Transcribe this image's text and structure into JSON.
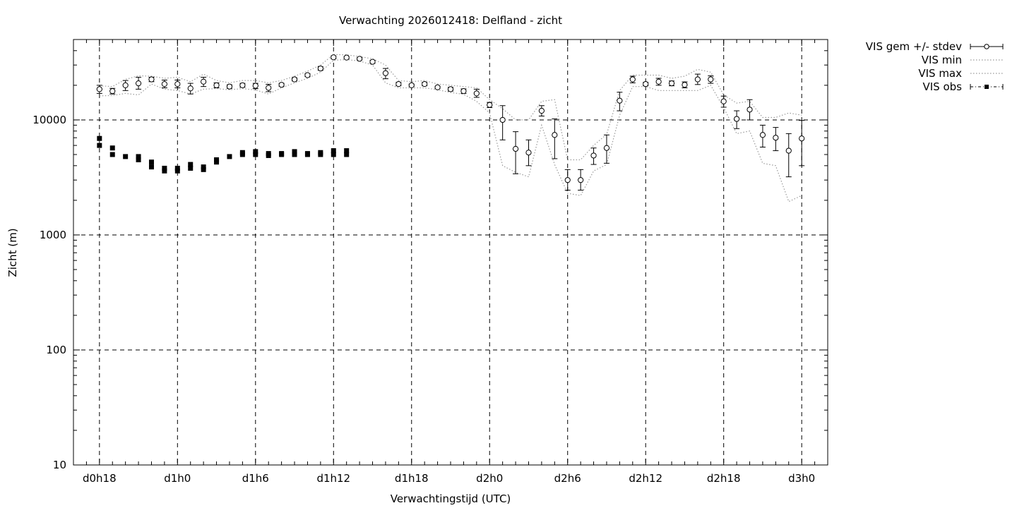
{
  "chart_data": {
    "type": "line",
    "title": "Verwachting 2026012418: Delfland - zicht",
    "xlabel": "Verwachtingstijd (UTC)",
    "ylabel": "Zicht (m)",
    "ylim": [
      10,
      50000
    ],
    "y_scale": "log",
    "y_ticks": [
      10,
      100,
      1000,
      10000
    ],
    "y_tick_labels": [
      "10",
      "100",
      "1000",
      "10000"
    ],
    "xlim_hours": [
      16,
      74
    ],
    "x_ticks_hours": [
      18,
      24,
      30,
      36,
      42,
      48,
      54,
      60,
      66,
      72
    ],
    "x_tick_labels": [
      "d0h18",
      "d1h0",
      "d1h6",
      "d1h12",
      "d1h18",
      "d2h0",
      "d2h6",
      "d2h12",
      "d2h18",
      "d3h0"
    ],
    "grid": "dashed",
    "legend_position": "top-right outside",
    "legend": [
      "VIS gem +/- stdev",
      "VIS min",
      "VIS max",
      "VIS obs"
    ],
    "series": [
      {
        "name": "VIS gem +/- stdev",
        "style": "errorbars-open-circle",
        "x": [
          18,
          19,
          20,
          21,
          22,
          23,
          24,
          25,
          26,
          27,
          28,
          29,
          30,
          31,
          32,
          33,
          34,
          35,
          36,
          37,
          38,
          39,
          40,
          41,
          42,
          43,
          44,
          45,
          46,
          47,
          48,
          49,
          50,
          51,
          52,
          53,
          54,
          55,
          56,
          57,
          58,
          59,
          60,
          61,
          62,
          63,
          64,
          65,
          66,
          67,
          68,
          69,
          70,
          71,
          72
        ],
        "mean": [
          18500,
          17800,
          20000,
          20800,
          22500,
          20500,
          20500,
          18800,
          21500,
          20000,
          19500,
          20000,
          19800,
          19000,
          20200,
          22500,
          24500,
          28000,
          35000,
          34800,
          34000,
          32000,
          25500,
          20500,
          20000,
          20500,
          19200,
          18500,
          17800,
          17000,
          13500,
          10000,
          5600,
          5200,
          12000,
          7400,
          3000,
          3000,
          4900,
          5700,
          14700,
          22500,
          20500,
          21500,
          20800,
          20200,
          22500,
          22500,
          14500,
          10200,
          12300,
          7400,
          7000,
          5400,
          6900
        ],
        "lo": [
          17000,
          16800,
          18000,
          18500,
          21500,
          19000,
          19000,
          16800,
          19500,
          19000,
          18800,
          19200,
          18700,
          17600,
          19600,
          21800,
          23800,
          27000,
          34000,
          34000,
          33200,
          31000,
          22800,
          19800,
          19500,
          19800,
          18800,
          17800,
          17000,
          15700,
          12800,
          6700,
          3400,
          4000,
          10800,
          4600,
          2450,
          2450,
          4100,
          4200,
          12000,
          21000,
          19800,
          20000,
          19800,
          19000,
          20300,
          20800,
          12900,
          8400,
          10000,
          5800,
          5400,
          3200,
          4000
        ],
        "hi": [
          20000,
          18800,
          22000,
          23500,
          23500,
          22200,
          22200,
          20800,
          23500,
          21000,
          20200,
          20800,
          20800,
          20400,
          20800,
          23200,
          25200,
          29000,
          36000,
          35600,
          34800,
          33000,
          28000,
          21200,
          20500,
          21200,
          19600,
          19200,
          18600,
          18500,
          14200,
          13300,
          7900,
          6700,
          13300,
          10200,
          3700,
          3700,
          5700,
          7400,
          17400,
          24000,
          21200,
          23000,
          21800,
          21400,
          25000,
          24200,
          16100,
          12000,
          15000,
          9000,
          8600,
          7600,
          9900
        ]
      },
      {
        "name": "VIS min",
        "style": "dotted",
        "x": [
          18,
          19,
          20,
          21,
          22,
          23,
          24,
          25,
          26,
          27,
          28,
          29,
          30,
          31,
          32,
          33,
          34,
          35,
          36,
          37,
          38,
          39,
          40,
          41,
          42,
          43,
          44,
          45,
          46,
          47,
          48,
          49,
          50,
          51,
          52,
          53,
          54,
          55,
          56,
          57,
          58,
          59,
          60,
          61,
          62,
          63,
          64,
          65,
          66,
          67,
          68,
          69,
          70,
          71,
          72
        ],
        "values": [
          16200,
          16300,
          17000,
          16500,
          20500,
          18500,
          18000,
          16800,
          18500,
          18700,
          18300,
          18700,
          18200,
          16800,
          19000,
          21000,
          23000,
          26000,
          33000,
          33500,
          32500,
          30000,
          21000,
          19000,
          19000,
          19000,
          18300,
          17300,
          16700,
          14500,
          11500,
          4000,
          3500,
          3200,
          9000,
          4100,
          2300,
          2200,
          3600,
          4100,
          11000,
          19500,
          19500,
          18000,
          18000,
          18000,
          18000,
          20000,
          12800,
          7600,
          8000,
          4200,
          4000,
          1950,
          2200
        ]
      },
      {
        "name": "VIS max",
        "style": "dotted",
        "x": [
          18,
          19,
          20,
          21,
          22,
          23,
          24,
          25,
          26,
          27,
          28,
          29,
          30,
          31,
          32,
          33,
          34,
          35,
          36,
          37,
          38,
          39,
          40,
          41,
          42,
          43,
          44,
          45,
          46,
          47,
          48,
          49,
          50,
          51,
          52,
          53,
          54,
          55,
          56,
          57,
          58,
          59,
          60,
          61,
          62,
          63,
          64,
          65,
          66,
          67,
          68,
          69,
          70,
          71,
          72
        ],
        "values": [
          19800,
          19500,
          22500,
          24200,
          24000,
          23000,
          23500,
          21500,
          25000,
          22000,
          21000,
          22000,
          22000,
          21000,
          22000,
          24000,
          26500,
          30000,
          37000,
          36800,
          35500,
          34000,
          30000,
          22000,
          21500,
          22000,
          20500,
          20000,
          19500,
          19000,
          15000,
          12500,
          10000,
          10000,
          14500,
          15000,
          4500,
          4500,
          6000,
          7500,
          18000,
          24500,
          24500,
          24500,
          23000,
          24000,
          27500,
          26000,
          16500,
          14000,
          14500,
          10500,
          10500,
          11500,
          11000
        ]
      },
      {
        "name": "VIS obs",
        "style": "filled-square",
        "x": [
          18,
          18,
          19,
          19,
          20,
          21,
          21,
          22,
          22,
          23,
          23,
          24,
          24,
          25,
          25,
          26,
          26,
          27,
          27,
          28,
          29,
          29,
          30,
          30,
          31,
          31,
          32,
          32,
          33,
          33,
          34,
          34,
          35,
          35,
          36,
          36,
          37,
          37
        ],
        "values": [
          6900,
          6000,
          5700,
          5000,
          4800,
          4800,
          4500,
          4300,
          3900,
          3800,
          3600,
          3800,
          3600,
          4100,
          3800,
          3900,
          3700,
          4500,
          4300,
          4800,
          5200,
          5000,
          5300,
          5000,
          5100,
          4900,
          5100,
          5000,
          5300,
          5000,
          5100,
          5000,
          5200,
          5000,
          5400,
          5000,
          5400,
          5000
        ]
      }
    ]
  }
}
